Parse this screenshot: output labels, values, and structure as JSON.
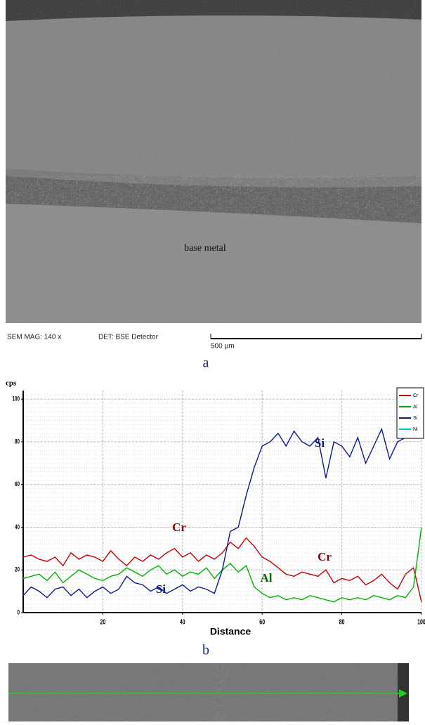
{
  "figure": {
    "sem_mag": "SEM MAG: 140 x",
    "detector": "DET: BSE Detector",
    "scale_bar": "500 µm",
    "region_label": "base metal",
    "panel_a": "a",
    "panel_b": "b"
  },
  "chart_data": {
    "type": "line",
    "y_label": "cps",
    "x_label": "Distance",
    "x": [
      0,
      2,
      4,
      6,
      8,
      10,
      12,
      14,
      16,
      18,
      20,
      22,
      24,
      26,
      28,
      30,
      32,
      34,
      36,
      38,
      40,
      42,
      44,
      46,
      48,
      50,
      52,
      54,
      56,
      58,
      60,
      62,
      64,
      66,
      68,
      70,
      72,
      74,
      76,
      78,
      80,
      82,
      84,
      86,
      88,
      90,
      92,
      94,
      96,
      98,
      100
    ],
    "series": [
      {
        "name": "Cr",
        "color": "#c00000",
        "values": [
          26,
          27,
          25,
          24,
          26,
          22,
          28,
          25,
          27,
          26,
          24,
          29,
          25,
          22,
          26,
          24,
          27,
          25,
          28,
          30,
          26,
          28,
          24,
          27,
          25,
          28,
          33,
          30,
          35,
          31,
          26,
          24,
          21,
          18,
          17,
          19,
          18,
          17,
          20,
          14,
          16,
          15,
          17,
          13,
          15,
          18,
          14,
          11,
          18,
          21,
          5
        ]
      },
      {
        "name": "Al",
        "color": "#00b000",
        "values": [
          16,
          17,
          18,
          15,
          19,
          14,
          17,
          20,
          18,
          16,
          15,
          17,
          18,
          21,
          19,
          17,
          20,
          22,
          18,
          20,
          17,
          19,
          18,
          21,
          16,
          20,
          23,
          19,
          22,
          12,
          9,
          7,
          8,
          6,
          7,
          6,
          8,
          7,
          6,
          5,
          7,
          6,
          7,
          6,
          8,
          7,
          6,
          8,
          7,
          12,
          40
        ]
      },
      {
        "name": "Si",
        "color": "#0a1a8c",
        "values": [
          8,
          12,
          10,
          7,
          11,
          12,
          8,
          11,
          7,
          10,
          12,
          9,
          11,
          17,
          14,
          13,
          10,
          12,
          9,
          11,
          13,
          10,
          12,
          11,
          9,
          20,
          38,
          40,
          55,
          68,
          78,
          80,
          84,
          78,
          85,
          80,
          78,
          82,
          63,
          80,
          78,
          73,
          82,
          70,
          78,
          86,
          72,
          80,
          82,
          null,
          null
        ]
      },
      {
        "name": "Ni",
        "color": "#00c8c8",
        "values": [
          null,
          null,
          null,
          null,
          null,
          null,
          null,
          null,
          null,
          null,
          null,
          null,
          null,
          null,
          null,
          null,
          null,
          null,
          null,
          null,
          null,
          null,
          null,
          null,
          null,
          null,
          null,
          null,
          null,
          null,
          null,
          null,
          null,
          null,
          null,
          null,
          null,
          null,
          null,
          null,
          null,
          null,
          null,
          null,
          null,
          null,
          null,
          null,
          null,
          null,
          null
        ]
      }
    ],
    "annotations": [
      {
        "text": "Cr",
        "color": "#8b0000"
      },
      {
        "text": "Cr",
        "color": "#8b0000"
      },
      {
        "text": "Al",
        "color": "#006400"
      },
      {
        "text": "Si",
        "color": "#0a1a8c"
      },
      {
        "text": "Si",
        "color": "#0a1a8c"
      }
    ],
    "xlim": [
      0,
      100
    ],
    "ylim": [
      0,
      104
    ],
    "xticks": [
      20,
      40,
      60,
      80,
      100
    ],
    "yticks": [
      0,
      20,
      40,
      60,
      80,
      100
    ],
    "grid": true
  }
}
